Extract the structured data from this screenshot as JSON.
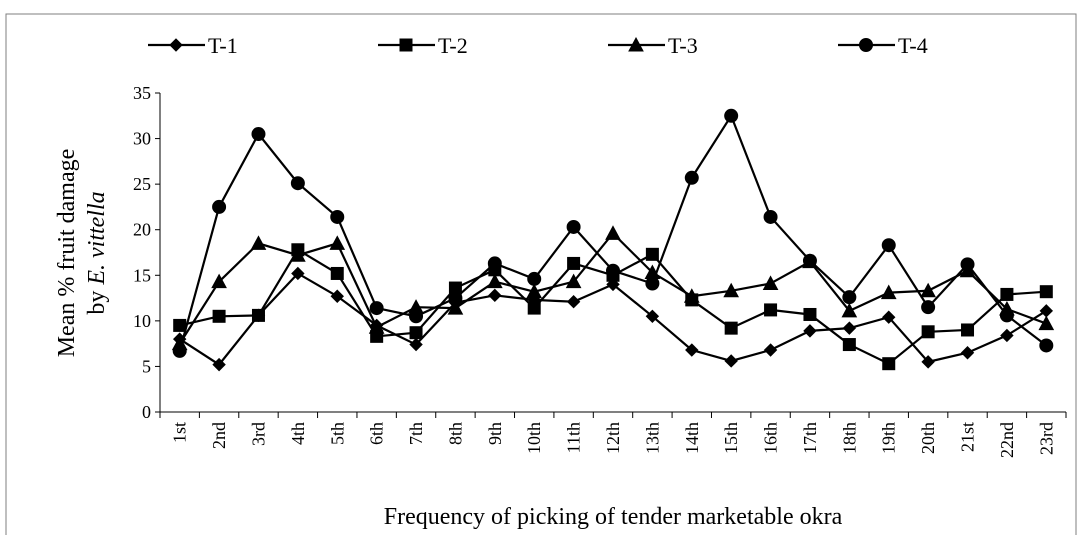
{
  "chart_data": {
    "type": "line",
    "x_label": "Frequency of picking of tender marketable okra",
    "y_label": [
      "Mean % fruit damage",
      "by ",
      "E. vittella"
    ],
    "categories": [
      "1st",
      "2nd",
      "3rd",
      "4th",
      "5th",
      "6th",
      "7th",
      "8th",
      "9th",
      "10th",
      "11th",
      "12th",
      "13th",
      "14th",
      "15th",
      "16th",
      "17th",
      "18th",
      "19th",
      "20th",
      "21st",
      "22nd",
      "23rd"
    ],
    "series": [
      {
        "name": "T-1",
        "color": "#000000",
        "marker": "diamond",
        "values": [
          8,
          5.2,
          10.6,
          15.2,
          12.7,
          9.5,
          7.4,
          12,
          12.8,
          12.3,
          12.1,
          14,
          10.5,
          6.8,
          5.6,
          6.8,
          8.9,
          9.2,
          10.4,
          5.5,
          6.5,
          8.4,
          11.1
        ]
      },
      {
        "name": "T-2",
        "color": "#000000",
        "marker": "square",
        "values": [
          9.5,
          10.5,
          10.6,
          17.8,
          15.2,
          8.3,
          8.7,
          13.6,
          15.6,
          11.4,
          16.3,
          15,
          17.3,
          12.3,
          9.2,
          11.2,
          10.7,
          7.4,
          5.3,
          8.8,
          9,
          12.9,
          13.2
        ]
      },
      {
        "name": "T-3",
        "color": "#000000",
        "marker": "triangle",
        "values": [
          7.5,
          14.3,
          18.5,
          17.2,
          18.5,
          9.3,
          11.5,
          11.4,
          14.3,
          13.2,
          14.3,
          19.6,
          15.3,
          12.7,
          13.3,
          14.1,
          16.5,
          11.1,
          13.1,
          13.3,
          15.5,
          11.3,
          9.7
        ]
      },
      {
        "name": "T-4",
        "color": "#000000",
        "marker": "circle",
        "values": [
          6.7,
          22.5,
          30.5,
          25.1,
          21.4,
          11.4,
          10.5,
          12.5,
          16.3,
          14.6,
          20.3,
          15.5,
          14.1,
          25.7,
          32.5,
          21.4,
          16.6,
          12.6,
          18.3,
          11.5,
          16.2,
          10.6,
          7.3
        ]
      }
    ],
    "ylim": [
      0,
      35
    ],
    "yticks": [
      0,
      5,
      10,
      15,
      20,
      25,
      30,
      35
    ],
    "grid": false
  }
}
